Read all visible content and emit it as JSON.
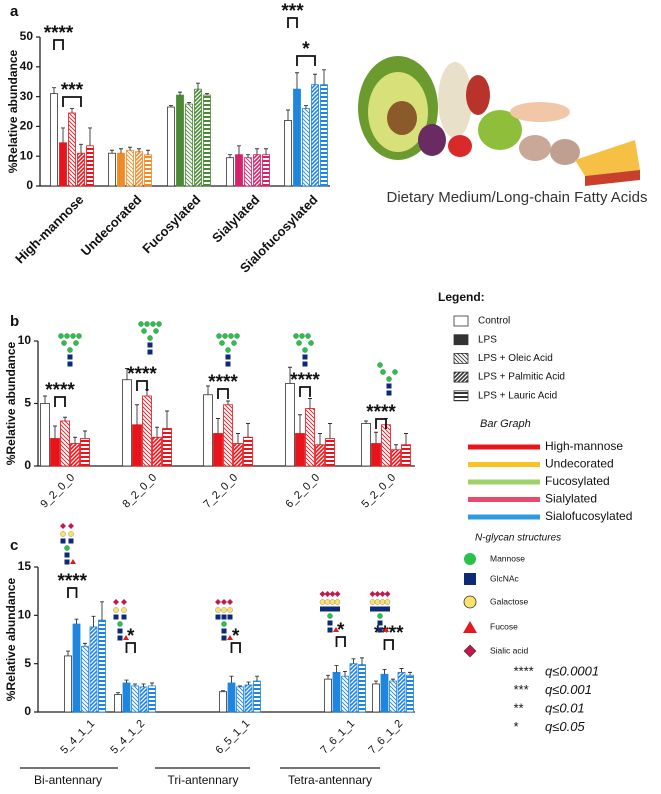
{
  "chart_data": [
    {
      "type": "bar",
      "panel": "a",
      "ylabel": "%Relative abundance",
      "categories": [
        "High-mannose",
        "Undecorated",
        "Fucosylated",
        "Sialylated",
        "Sialofucosylated"
      ],
      "category_colors": [
        "#e8141b",
        "#f08a24",
        "#4a8a35",
        "#d6216b",
        "#1f86e0"
      ],
      "series": [
        {
          "name": "Control",
          "values": [
            31,
            11,
            26.5,
            9.5,
            22
          ],
          "errors": [
            2,
            1,
            0.5,
            1,
            3.5
          ]
        },
        {
          "name": "LPS",
          "values": [
            14.5,
            11,
            30.5,
            10.5,
            32.5
          ],
          "errors": [
            5,
            1.5,
            1,
            3,
            5.5
          ]
        },
        {
          "name": "LPS + Oleic Acid",
          "values": [
            24.5,
            12,
            27.5,
            9.5,
            26
          ],
          "errors": [
            1.5,
            1,
            0.5,
            1,
            1
          ]
        },
        {
          "name": "LPS + Palmitic Acid",
          "values": [
            11,
            11.5,
            32.5,
            10.5,
            34
          ],
          "errors": [
            3,
            1,
            2,
            2,
            3.5
          ]
        },
        {
          "name": "LPS + Lauric Acid",
          "values": [
            13.5,
            10.5,
            30.5,
            10.5,
            34
          ],
          "errors": [
            6,
            1.5,
            0.5,
            2,
            5
          ]
        }
      ],
      "ylim": [
        0,
        50
      ],
      "yticks": [
        0,
        10,
        20,
        30,
        40,
        50
      ],
      "annotations": [
        "****",
        "***",
        "***",
        "*"
      ]
    },
    {
      "type": "bar",
      "panel": "b",
      "ylabel": "%Relative abundance",
      "categories": [
        "9_2_0_0",
        "8_2_0_0",
        "7_2_0_0",
        "6_2_0_0",
        "5_2_0_0"
      ],
      "color": "#e8141b",
      "series": [
        {
          "values": [
            5,
            6.9,
            5.7,
            6.6,
            3.4
          ],
          "errors": [
            0.6,
            0.9,
            0.7,
            1.3,
            0.2
          ]
        },
        {
          "values": [
            2.2,
            3.3,
            2.6,
            2.6,
            1.8
          ],
          "errors": [
            1,
            1.6,
            1.2,
            1.5,
            0.9
          ]
        },
        {
          "values": [
            3.6,
            5.6,
            4.9,
            4.6,
            3.3
          ],
          "errors": [
            0.3,
            0.5,
            0.3,
            0.8,
            0.5
          ]
        },
        {
          "values": [
            1.8,
            2.3,
            1.8,
            1.7,
            1.3
          ],
          "errors": [
            0.5,
            0.8,
            0.8,
            0.9,
            0.4
          ]
        },
        {
          "values": [
            2.2,
            3,
            2.3,
            2.2,
            1.7
          ],
          "errors": [
            0.6,
            1.4,
            1.1,
            1.2,
            0.9
          ]
        }
      ],
      "ylim": [
        0,
        10
      ],
      "yticks": [
        0,
        5,
        10
      ],
      "annotations": [
        "****",
        "****",
        "****",
        "****",
        "****"
      ]
    },
    {
      "type": "bar",
      "panel": "c",
      "ylabel": "%Relative abundance",
      "categories": [
        "5_4_1_1",
        "5_4_1_2",
        "6_5_1_1",
        "7_6_1_1",
        "7_6_1_2"
      ],
      "color": "#1f86e0",
      "series": [
        {
          "values": [
            5.8,
            1.8,
            2.1,
            3.4,
            2.9
          ],
          "errors": [
            0.5,
            0.2,
            0.1,
            0.4,
            0.3
          ]
        },
        {
          "values": [
            9.1,
            3,
            3,
            4.1,
            3.9
          ],
          "errors": [
            0.5,
            0.3,
            0.7,
            0.7,
            0.5
          ]
        },
        {
          "values": [
            6.8,
            2.7,
            2.6,
            3.7,
            3.2
          ],
          "errors": [
            0.3,
            0.2,
            0.1,
            0.5,
            0.2
          ]
        },
        {
          "values": [
            8.8,
            2.6,
            2.8,
            5,
            4.1
          ],
          "errors": [
            1.1,
            0.3,
            0.3,
            0.5,
            0.4
          ]
        },
        {
          "values": [
            9.5,
            2.7,
            3.2,
            4.9,
            3.8
          ],
          "errors": [
            1.9,
            0.3,
            0.5,
            0.7,
            0.3
          ]
        }
      ],
      "ylim": [
        0,
        15
      ],
      "yticks": [
        0,
        5,
        10,
        15
      ],
      "annotations": [
        "****",
        "*",
        "*",
        "*",
        "****"
      ],
      "groups": [
        "Bi-antennary",
        "Tri-antennary",
        "Tetra-antennary"
      ]
    }
  ],
  "image_caption": "Dietary Medium/Long-chain Fatty Acids",
  "legend": {
    "title": "Legend:",
    "bar_graph_title": "Bar Graph",
    "bar_graph": [
      {
        "name": "High-mannose",
        "color": "#e8141b"
      },
      {
        "name": "Undecorated",
        "color": "#f7c325"
      },
      {
        "name": "Fucosylated",
        "color": "#9ed36a"
      },
      {
        "name": "Sialylated",
        "color": "#e94a6c"
      },
      {
        "name": "Sialofucosylated",
        "color": "#2f9ae0"
      }
    ],
    "structures_title": "N-glycan structures",
    "structures": [
      "Mannose",
      "GlcNAc",
      "Galactose",
      "Fucose",
      "Sialic acid"
    ]
  },
  "significance": [
    {
      "stars": "****",
      "q": "q≤0.0001"
    },
    {
      "stars": "***",
      "q": "q≤0.001"
    },
    {
      "stars": "**",
      "q": "q≤0.01"
    },
    {
      "stars": "*",
      "q": "q≤0.05"
    }
  ]
}
